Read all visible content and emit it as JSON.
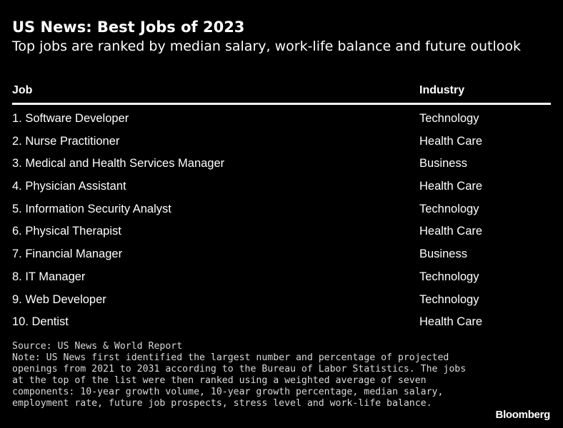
{
  "title": "US News: Best Jobs of 2023",
  "subtitle": "Top jobs are ranked by median salary, work-life balance and future outlook",
  "chart_data": {
    "type": "table",
    "columns": [
      "Job",
      "Industry"
    ],
    "rows": [
      [
        "1. Software Developer",
        "Technology"
      ],
      [
        "2. Nurse Practitioner",
        "Health Care"
      ],
      [
        "3. Medical and Health Services Manager",
        "Business"
      ],
      [
        "4. Physician Assistant",
        "Health Care"
      ],
      [
        "5. Information Security Analyst",
        "Technology"
      ],
      [
        "6. Physical Therapist",
        "Health Care"
      ],
      [
        "7. Financial Manager",
        "Business"
      ],
      [
        "8. IT Manager",
        "Technology"
      ],
      [
        "9. Web Developer",
        "Technology"
      ],
      [
        "10. Dentist",
        "Health Care"
      ]
    ]
  },
  "footer": {
    "source": "Source: US News & World Report",
    "note": "Note: US News first identified the largest number and percentage of projected openings from 2021 to 2031 according to the Bureau of Labor Statistics. The jobs at the top of the list were then ranked using a weighted average of seven components: 10-year growth volume, 10-year growth percentage, median salary, employment rate, future job prospects, stress level and work-life balance."
  },
  "branding": {
    "logo_text": "Bloomberg"
  }
}
